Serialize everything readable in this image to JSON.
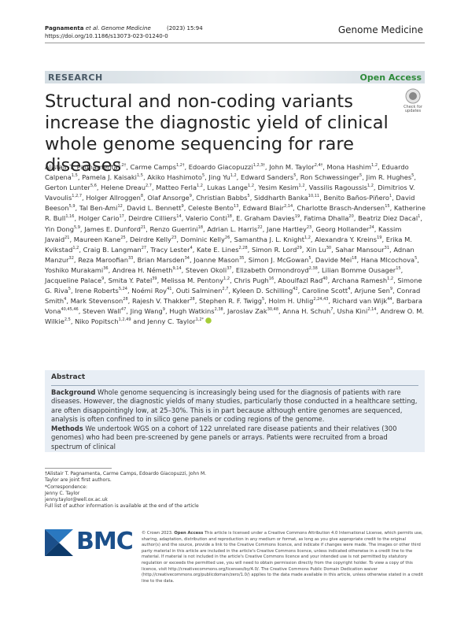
{
  "header": {
    "journal_ref_authors": "Pagnamenta",
    "journal_ref_etal": "et al. Genome Medicine",
    "journal_ref_year": "(2023) 15:94",
    "doi": "https://doi.org/10.1186/s13073-023-01240-0",
    "journal": "Genome Medicine"
  },
  "banner": {
    "label": "RESEARCH",
    "access": "Open Access"
  },
  "badge": {
    "text": "Check for updates"
  },
  "title": "Structural and non-coding variants increase the diagnostic yield of clinical whole genome sequencing for rare diseases",
  "author_separator": ",",
  "author_conjunction": "and",
  "authors": [
    {
      "name": "Alistair T. Pagnamenta",
      "aff": "1,2†"
    },
    {
      "name": "Carme Camps",
      "aff": "1,2†"
    },
    {
      "name": "Edoardo Giacopuzzi",
      "aff": "1,2,3†"
    },
    {
      "name": "John M. Taylor",
      "aff": "2,4†"
    },
    {
      "name": "Mona Hashim",
      "aff": "1,2"
    },
    {
      "name": "Eduardo Calpena",
      "aff": "1,5"
    },
    {
      "name": "Pamela J. Kaisaki",
      "aff": "1,5"
    },
    {
      "name": "Akiko Hashimoto",
      "aff": "5"
    },
    {
      "name": "Jing Yu",
      "aff": "1,2"
    },
    {
      "name": "Edward Sanders",
      "aff": "5"
    },
    {
      "name": "Ron Schwessinger",
      "aff": "5"
    },
    {
      "name": "Jim R. Hughes",
      "aff": "5"
    },
    {
      "name": "Gerton Lunter",
      "aff": "5,6"
    },
    {
      "name": "Helene Dreau",
      "aff": "2,7"
    },
    {
      "name": "Matteo Ferla",
      "aff": "1,2"
    },
    {
      "name": "Lukas Lange",
      "aff": "1,2"
    },
    {
      "name": "Yesim Kesim",
      "aff": "1,2"
    },
    {
      "name": "Vassilis Ragoussis",
      "aff": "1,2"
    },
    {
      "name": "Dimitrios V. Vavoulis",
      "aff": "1,2,7"
    },
    {
      "name": "Holger Allroggen",
      "aff": "8"
    },
    {
      "name": "Olaf Ansorge",
      "aff": "9"
    },
    {
      "name": "Christian Babbs",
      "aff": "5"
    },
    {
      "name": "Siddharth Banka",
      "aff": "10,11"
    },
    {
      "name": "Benito Baños-Piñero",
      "aff": "1"
    },
    {
      "name": "David Beeson",
      "aff": "5,9"
    },
    {
      "name": "Tal Ben-Ami",
      "aff": "12"
    },
    {
      "name": "David L. Bennett",
      "aff": "9"
    },
    {
      "name": "Celeste Bento",
      "aff": "13"
    },
    {
      "name": "Edward Blair",
      "aff": "2,14"
    },
    {
      "name": "Charlotte Brasch-Andersen",
      "aff": "15"
    },
    {
      "name": "Katherine R. Bull",
      "aff": "1,16"
    },
    {
      "name": "Holger Cario",
      "aff": "17"
    },
    {
      "name": "Deirdre Cilliers",
      "aff": "14"
    },
    {
      "name": "Valerio Conti",
      "aff": "18"
    },
    {
      "name": "E. Graham Davies",
      "aff": "19"
    },
    {
      "name": "Fatima Dhalla",
      "aff": "20"
    },
    {
      "name": "Beatriz Diez Dacal",
      "aff": "1"
    },
    {
      "name": "Yin Dong",
      "aff": "5,9"
    },
    {
      "name": "James E. Dunford",
      "aff": "21"
    },
    {
      "name": "Renzo Guerrini",
      "aff": "18"
    },
    {
      "name": "Adrian L. Harris",
      "aff": "22"
    },
    {
      "name": "Jane Hartley",
      "aff": "23"
    },
    {
      "name": "Georg Hollander",
      "aff": "24"
    },
    {
      "name": "Kassim Javaid",
      "aff": "21"
    },
    {
      "name": "Maureen Kane",
      "aff": "25"
    },
    {
      "name": "Deirdre Kelly",
      "aff": "23"
    },
    {
      "name": "Dominic Kelly",
      "aff": "26"
    },
    {
      "name": "Samantha J. L. Knight",
      "aff": "1,2"
    },
    {
      "name": "Alexandra Y. Kreins",
      "aff": "19"
    },
    {
      "name": "Erika M. Kvikstad",
      "aff": "1,2"
    },
    {
      "name": "Craig B. Langman",
      "aff": "27"
    },
    {
      "name": "Tracy Lester",
      "aff": "4"
    },
    {
      "name": "Kate E. Lines",
      "aff": "2,28"
    },
    {
      "name": "Simon R. Lord",
      "aff": "29"
    },
    {
      "name": "Xin Lu",
      "aff": "30"
    },
    {
      "name": "Sahar Mansour",
      "aff": "31"
    },
    {
      "name": "Adnan Manzur",
      "aff": "32"
    },
    {
      "name": "Reza Maroofian",
      "aff": "33"
    },
    {
      "name": "Brian Marsden",
      "aff": "34"
    },
    {
      "name": "Joanne Mason",
      "aff": "35"
    },
    {
      "name": "Simon J. McGowan",
      "aff": "5"
    },
    {
      "name": "Davide Mei",
      "aff": "18"
    },
    {
      "name": "Hana Mlcochova",
      "aff": "5"
    },
    {
      "name": "Yoshiko Murakami",
      "aff": "36"
    },
    {
      "name": "Andrea H. Németh",
      "aff": "9,14"
    },
    {
      "name": "Steven Okoli",
      "aff": "37"
    },
    {
      "name": "Elizabeth Ormondroyd",
      "aff": "2,38"
    },
    {
      "name": "Lilian Bomme Ousager",
      "aff": "15"
    },
    {
      "name": "Jacqueline Palace",
      "aff": "9"
    },
    {
      "name": "Smita Y. Patel",
      "aff": "39"
    },
    {
      "name": "Melissa M. Pentony",
      "aff": "1,2"
    },
    {
      "name": "Chris Pugh",
      "aff": "16"
    },
    {
      "name": "Aboulfazl Rad",
      "aff": "40"
    },
    {
      "name": "Archana Ramesh",
      "aff": "1,2"
    },
    {
      "name": "Simone G. Riva",
      "aff": "5"
    },
    {
      "name": "Irene Roberts",
      "aff": "5,24"
    },
    {
      "name": "Noémi Roy",
      "aff": "41"
    },
    {
      "name": "Outi Salminen",
      "aff": "2,7"
    },
    {
      "name": "Kyleen D. Schilling",
      "aff": "42"
    },
    {
      "name": "Caroline Scott",
      "aff": "4"
    },
    {
      "name": "Arjune Sen",
      "aff": "9"
    },
    {
      "name": "Conrad Smith",
      "aff": "4"
    },
    {
      "name": "Mark Stevenson",
      "aff": "28"
    },
    {
      "name": "Rajesh V. Thakker",
      "aff": "28"
    },
    {
      "name": "Stephen R. F. Twigg",
      "aff": "5"
    },
    {
      "name": "Holm H. Uhlig",
      "aff": "2,24,43"
    },
    {
      "name": "Richard van Wijk",
      "aff": "44"
    },
    {
      "name": "Barbara Vona",
      "aff": "40,45,46"
    },
    {
      "name": "Steven Wall",
      "aff": "47"
    },
    {
      "name": "Jing Wang",
      "aff": "9"
    },
    {
      "name": "Hugh Watkins",
      "aff": "2,38"
    },
    {
      "name": "Jaroslav Zak",
      "aff": "30,48"
    },
    {
      "name": "Anna H. Schuh",
      "aff": "7"
    },
    {
      "name": "Usha Kini",
      "aff": "2,14"
    },
    {
      "name": "Andrew O. M. Wilkie",
      "aff": "2,5"
    },
    {
      "name": "Niko Popitsch",
      "aff": "1,2,49"
    },
    {
      "name": "Jenny C. Taylor",
      "aff": "1,2*"
    }
  ],
  "abstract": {
    "heading": "Abstract",
    "background_label": "Background",
    "background": "Whole genome sequencing is increasingly being used for the diagnosis of patients with rare diseases. However, the diagnostic yields of many studies, particularly those conducted in a healthcare setting, are often disappointingly low, at 25–30%. This is in part because although entire genomes are sequenced, analysis is often confined to in silico gene panels or coding regions of the genome.",
    "methods_label": "Methods",
    "methods": "We undertook WGS on a cohort of 122 unrelated rare disease patients and their relatives (300 genomes) who had been pre-screened by gene panels or arrays. Patients were recruited from a broad spectrum of clinical"
  },
  "footnotes": {
    "joint": "†Alistair T. Pagnamenta, Carme Camps, Edoardo Giacopuzzi, John M. Taylor are joint first authors.",
    "corr_label": "*Correspondence:",
    "corr_name": "Jenny C. Taylor",
    "corr_email": "jenny.taylor@well.ox.ac.uk",
    "full_list": "Full list of author information is available at the end of the article"
  },
  "footer": {
    "logo": "BMC",
    "copyright": "© Crown 2023.",
    "oa": "Open Access",
    "license": "This article is licensed under a Creative Commons Attribution 4.0 International License, which permits use, sharing, adaptation, distribution and reproduction in any medium or format, as long as you give appropriate credit to the original author(s) and the source, provide a link to the Creative Commons licence, and indicate if changes were made. The images or other third party material in this article are included in the article's Creative Commons licence, unless indicated otherwise in a credit line to the material. If material is not included in the article's Creative Commons licence and your intended use is not permitted by statutory regulation or exceeds the permitted use, you will need to obtain permission directly from the copyright holder. To view a copy of this licence, visit http://creativecommons.org/licenses/by/4.0/. The Creative Commons Public Domain Dedication waiver (http://creativecommons.org/publicdomain/zero/1.0/) applies to the data made available in this article, unless otherwise stated in a credit line to the data."
  }
}
